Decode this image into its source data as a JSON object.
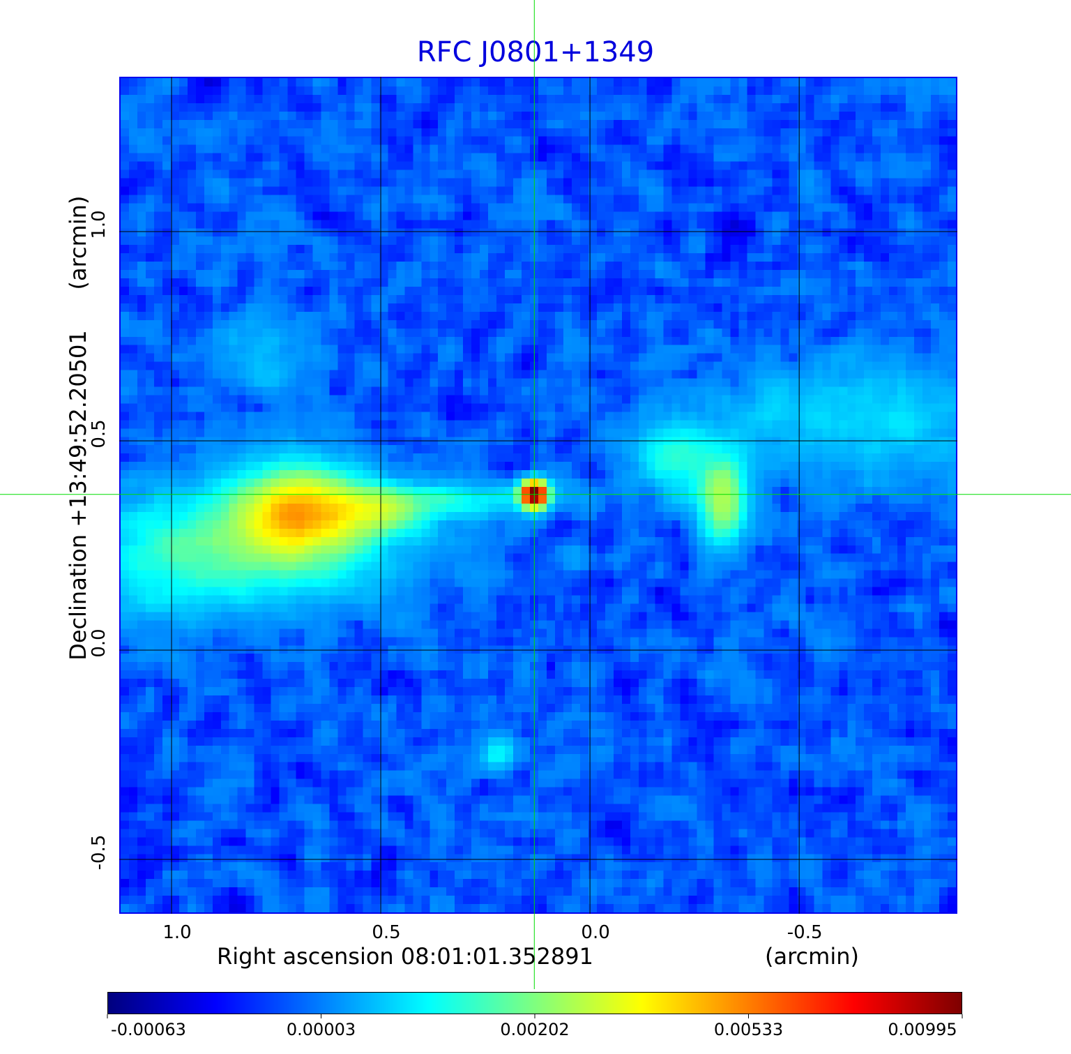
{
  "chart_data": {
    "type": "heatmap",
    "title": "RFC J0801+1349",
    "xlabel": "Right ascension  08:01:01.352891",
    "xunit": "(arcmin)",
    "ylabel": "Declination  +13:49:52.20501",
    "yunit": "(arcmin)",
    "xlim": [
      1.125,
      -0.878
    ],
    "ylim": [
      -0.63,
      1.37
    ],
    "xticks": [
      {
        "value": 1.0,
        "label": "1.0"
      },
      {
        "value": 0.5,
        "label": "0.5"
      },
      {
        "value": 0.0,
        "label": "0.0"
      },
      {
        "value": -0.5,
        "label": "-0.5"
      }
    ],
    "yticks": [
      {
        "value": 1.0,
        "label": "1.0"
      },
      {
        "value": 0.5,
        "label": "0.5"
      },
      {
        "value": 0.0,
        "label": "0.0"
      },
      {
        "value": -0.5,
        "label": "-0.5"
      }
    ],
    "grid": true,
    "crosshair": {
      "x": 0.133,
      "y": 0.372,
      "color": "#00dd00"
    },
    "colormap": "jet",
    "colorbar": {
      "placement": "bottom",
      "ticks": [
        {
          "value": -0.00063,
          "label": "-0.00063"
        },
        {
          "value": 3e-05,
          "label": "0.00003"
        },
        {
          "value": 0.00202,
          "label": "0.00202"
        },
        {
          "value": 0.00533,
          "label": "0.00533"
        },
        {
          "value": 0.00995,
          "label": "0.00995"
        }
      ]
    },
    "background": {
      "mean": -8e-05,
      "std": 0.00016
    },
    "components": [
      {
        "name": "core",
        "x": 0.133,
        "y": 0.372,
        "sx": 0.02,
        "sy": 0.02,
        "peak": 0.0104
      },
      {
        "name": "west-lobe-hotspot",
        "x": 0.7,
        "y": 0.33,
        "sx": 0.09,
        "sy": 0.07,
        "peak": 0.0036
      },
      {
        "name": "west-lobe-halo",
        "x": 0.75,
        "y": 0.27,
        "sx": 0.22,
        "sy": 0.1,
        "peak": 0.0016
      },
      {
        "name": "west-lobe-extension",
        "x": 0.52,
        "y": 0.33,
        "sx": 0.08,
        "sy": 0.04,
        "peak": 0.0018
      },
      {
        "name": "jet",
        "x": 0.32,
        "y": 0.36,
        "sx": 0.17,
        "sy": 0.03,
        "peak": 0.0011
      },
      {
        "name": "west-tail",
        "x": 1.02,
        "y": 0.2,
        "sx": 0.15,
        "sy": 0.09,
        "peak": 0.0009
      },
      {
        "name": "east-lobe",
        "x": -0.32,
        "y": 0.36,
        "sx": 0.04,
        "sy": 0.07,
        "peak": 0.0026
      },
      {
        "name": "east-lobe-arc",
        "x": -0.2,
        "y": 0.46,
        "sx": 0.06,
        "sy": 0.06,
        "peak": 0.0014
      },
      {
        "name": "east-band",
        "x": -0.65,
        "y": 0.55,
        "sx": 0.28,
        "sy": 0.1,
        "peak": 0.0008
      },
      {
        "name": "north-west-ridge",
        "x": 0.78,
        "y": 0.7,
        "sx": 0.08,
        "sy": 0.06,
        "peak": 0.0006
      },
      {
        "name": "south-spot",
        "x": 0.22,
        "y": -0.25,
        "sx": 0.03,
        "sy": 0.03,
        "peak": 0.0011
      }
    ]
  }
}
